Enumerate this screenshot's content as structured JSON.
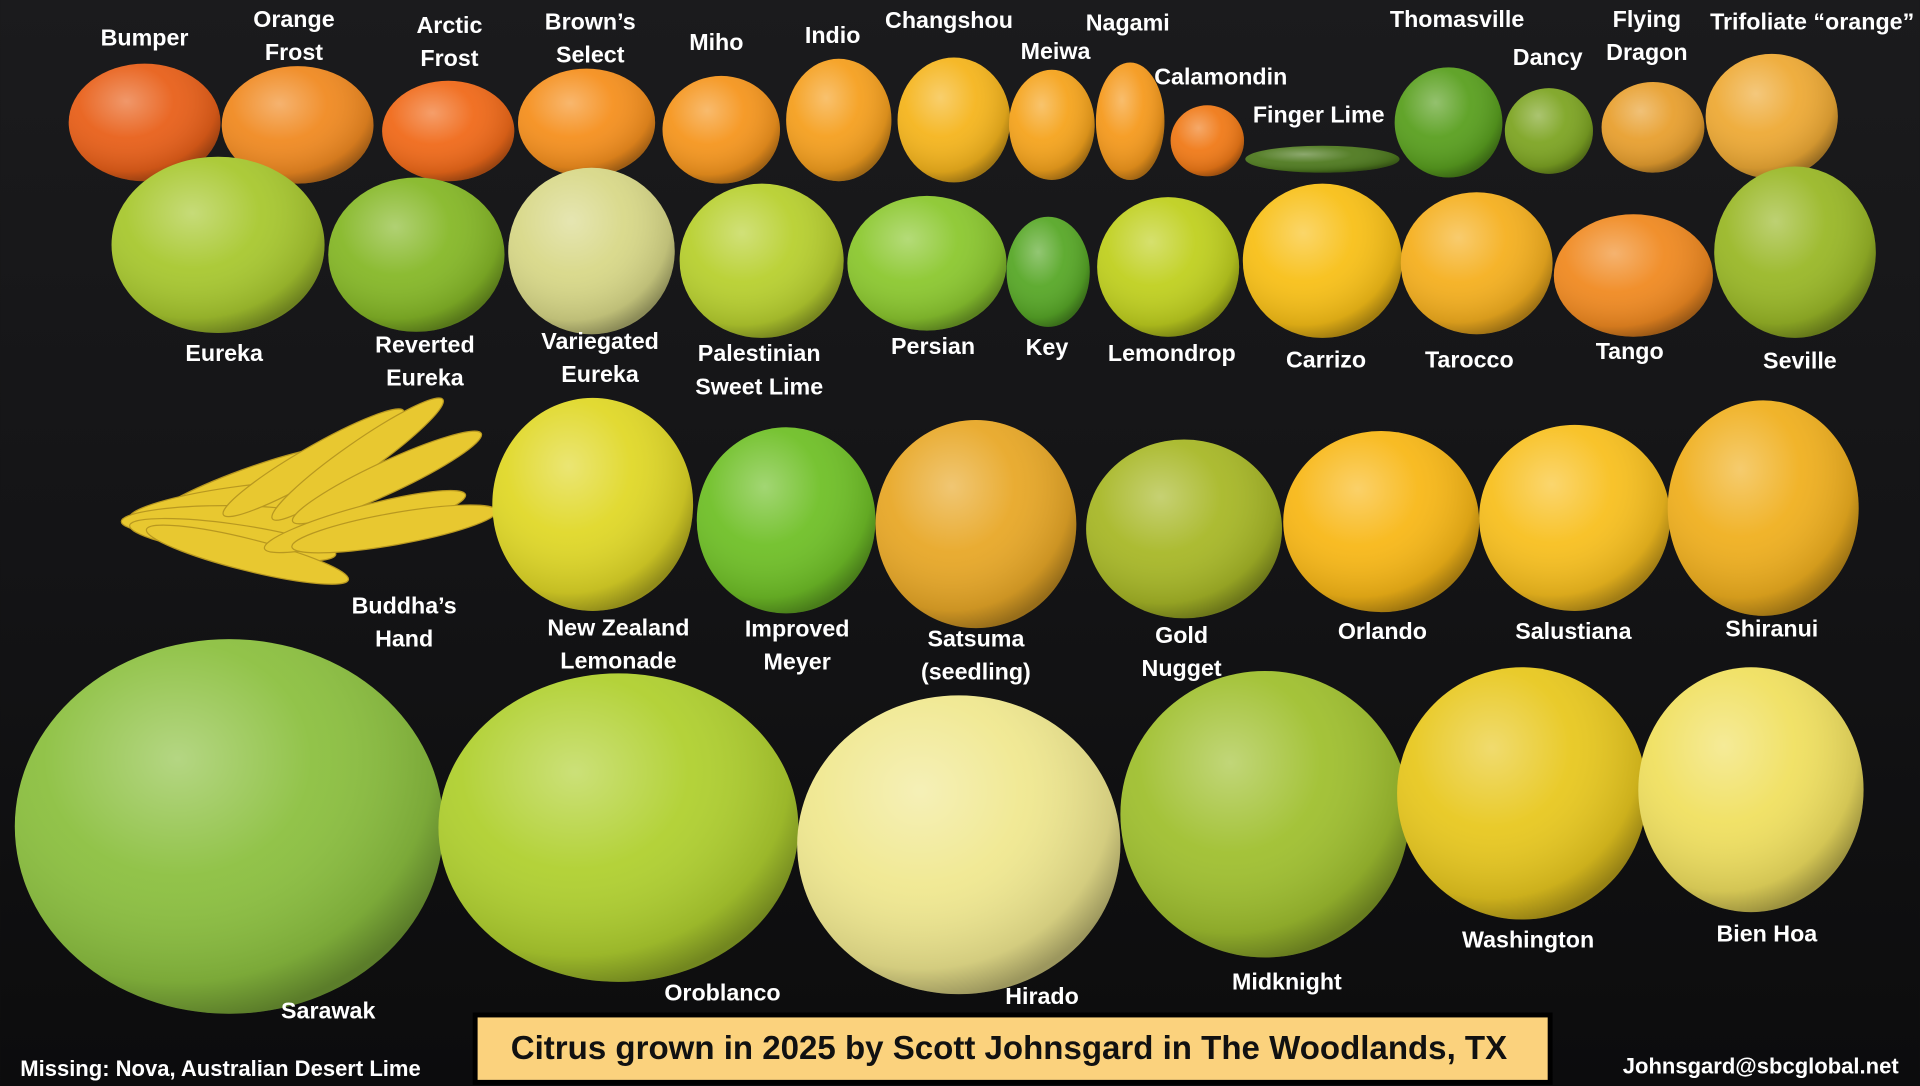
{
  "title": "Citrus grown in 2025 by Scott Johnsgard in The Woodlands, TX",
  "missing_note": "Missing: Nova, Australian Desert Lime",
  "email": "Johnsgard@sbcglobal.net",
  "fruits": [
    {
      "label": [
        "Bumper"
      ]
    },
    {
      "label": [
        "Orange",
        "Frost"
      ]
    },
    {
      "label": [
        "Arctic",
        "Frost"
      ]
    },
    {
      "label": [
        "Brown’s",
        "Select"
      ]
    },
    {
      "label": [
        "Miho"
      ]
    },
    {
      "label": [
        "Indio"
      ]
    },
    {
      "label": [
        "Changshou"
      ]
    },
    {
      "label": [
        "Meiwa"
      ]
    },
    {
      "label": [
        "Nagami"
      ]
    },
    {
      "label": [
        "Calamondin"
      ]
    },
    {
      "label": [
        "Finger Lime"
      ]
    },
    {
      "label": [
        "Thomasville"
      ]
    },
    {
      "label": [
        "Dancy"
      ]
    },
    {
      "label": [
        "Flying",
        "Dragon"
      ]
    },
    {
      "label": [
        "Trifoliate “orange”"
      ]
    },
    {
      "label": [
        "Eureka"
      ]
    },
    {
      "label": [
        "Reverted",
        "Eureka"
      ]
    },
    {
      "label": [
        "Variegated",
        "Eureka"
      ]
    },
    {
      "label": [
        "Palestinian",
        "Sweet Lime"
      ]
    },
    {
      "label": [
        "Persian"
      ]
    },
    {
      "label": [
        "Key"
      ]
    },
    {
      "label": [
        "Lemondrop"
      ]
    },
    {
      "label": [
        "Carrizo"
      ]
    },
    {
      "label": [
        "Tarocco"
      ]
    },
    {
      "label": [
        "Tango"
      ]
    },
    {
      "label": [
        "Seville"
      ]
    },
    {
      "label": [
        "Buddha’s",
        "Hand"
      ]
    },
    {
      "label": [
        "New Zealand",
        "Lemonade"
      ]
    },
    {
      "label": [
        "Improved",
        "Meyer"
      ]
    },
    {
      "label": [
        "Satsuma",
        "(seedling)"
      ]
    },
    {
      "label": [
        "Gold",
        "Nugget"
      ]
    },
    {
      "label": [
        "Orlando"
      ]
    },
    {
      "label": [
        "Salustiana"
      ]
    },
    {
      "label": [
        "Shiranui"
      ]
    },
    {
      "label": [
        "Sarawak"
      ]
    },
    {
      "label": [
        "Oroblanco"
      ]
    },
    {
      "label": [
        "Hirado"
      ]
    },
    {
      "label": [
        "Midknight"
      ]
    },
    {
      "label": [
        "Washington"
      ]
    },
    {
      "label": [
        "Bien Hoa"
      ]
    }
  ]
}
